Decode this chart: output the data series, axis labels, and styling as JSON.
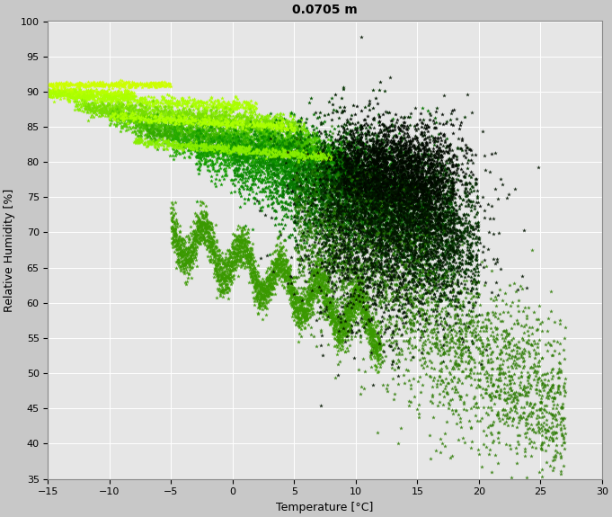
{
  "title": "0.0705 m",
  "xlabel": "Temperature [°C]",
  "ylabel": "Relative Humidity [%]",
  "xlim": [
    -15,
    30
  ],
  "ylim": [
    35,
    100
  ],
  "xticks": [
    -15,
    -10,
    -5,
    0,
    5,
    10,
    15,
    20,
    25,
    30
  ],
  "yticks": [
    35,
    40,
    45,
    50,
    55,
    60,
    65,
    70,
    75,
    80,
    85,
    90,
    95,
    100
  ],
  "background_color": "#c8c8c8",
  "plot_background": "#e6e6e6",
  "title_fontsize": 10,
  "label_fontsize": 9,
  "tick_fontsize": 8,
  "markersize": 3.5,
  "series": [
    {
      "color": "#b8ff00",
      "slope": -0.07,
      "intercept": 90.0,
      "t_start": -15,
      "t_end": -8,
      "noise": 0.3,
      "n": 350
    },
    {
      "color": "#aaff00",
      "slope": -0.1,
      "intercept": 89.5,
      "t_start": -15,
      "t_end": 2,
      "noise": 0.4,
      "n": 600
    },
    {
      "color": "#88ee00",
      "slope": -0.12,
      "intercept": 88.0,
      "t_start": -13,
      "t_end": 5,
      "noise": 0.5,
      "n": 500
    },
    {
      "color": "#77dd00",
      "slope": -0.15,
      "intercept": 87.5,
      "t_start": -12,
      "t_end": 6,
      "noise": 0.6,
      "n": 700
    },
    {
      "color": "#55cc00",
      "slope": -0.18,
      "intercept": 86.0,
      "t_start": -10,
      "t_end": 7,
      "noise": 0.7,
      "n": 700
    },
    {
      "color": "#44bb00",
      "slope": -0.2,
      "intercept": 85.0,
      "t_start": -8,
      "t_end": 8,
      "noise": 0.8,
      "n": 600
    },
    {
      "color": "#33aa00",
      "slope": -0.22,
      "intercept": 84.0,
      "t_start": -7,
      "t_end": 9,
      "noise": 1.0,
      "n": 600
    },
    {
      "color": "#22aa00",
      "slope": -0.25,
      "intercept": 83.0,
      "t_start": -5,
      "t_end": 10,
      "noise": 1.2,
      "n": 700
    },
    {
      "color": "#119900",
      "slope": -0.28,
      "intercept": 81.5,
      "t_start": -3,
      "t_end": 12,
      "noise": 2.0,
      "n": 900
    },
    {
      "color": "#0a8800",
      "slope": -0.32,
      "intercept": 80.0,
      "t_start": 0,
      "t_end": 14,
      "noise": 3.0,
      "n": 1100
    },
    {
      "color": "#067700",
      "slope": -0.36,
      "intercept": 78.0,
      "t_start": 3,
      "t_end": 16,
      "noise": 4.0,
      "n": 1300
    },
    {
      "color": "#045500",
      "slope": -0.4,
      "intercept": 76.0,
      "t_start": 5,
      "t_end": 18,
      "noise": 5.0,
      "n": 1500
    },
    {
      "color": "#033300",
      "slope": -0.45,
      "intercept": 74.0,
      "t_start": 7,
      "t_end": 20,
      "noise": 6.0,
      "n": 1800
    },
    {
      "color": "#021a00",
      "slope": -0.5,
      "intercept": 78.0,
      "t_start": 8,
      "t_end": 18,
      "noise": 4.0,
      "n": 1200
    },
    {
      "color": "#010a00",
      "slope": -0.5,
      "intercept": 80.0,
      "t_start": 9,
      "t_end": 17,
      "noise": 3.0,
      "n": 800
    }
  ]
}
